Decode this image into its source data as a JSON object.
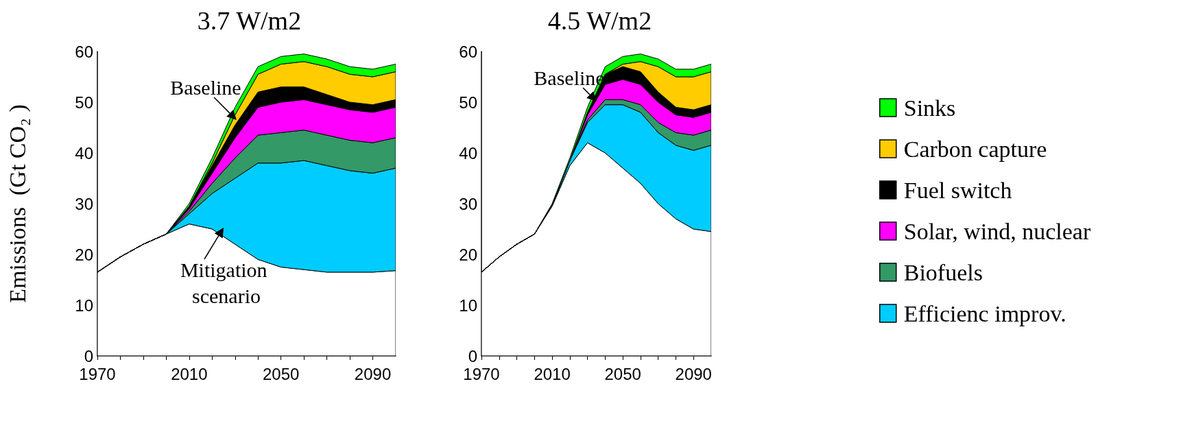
{
  "chart_data": [
    {
      "type": "area",
      "title": "3.7 W/m2",
      "ylabel": "Emissions  (Gt CO₂ )",
      "stacked": true,
      "legend": false,
      "grid": false,
      "x": [
        1970,
        1980,
        1990,
        2000,
        2010,
        2020,
        2030,
        2040,
        2050,
        2060,
        2070,
        2080,
        2090,
        2100
      ],
      "xlim": [
        1970,
        2100
      ],
      "xticks": [
        1970,
        {
          "value": 1980,
          "label": null
        },
        {
          "value": 1990,
          "label": null
        },
        {
          "value": 2000,
          "label": null
        },
        2010,
        {
          "value": 2020,
          "label": null
        },
        {
          "value": 2030,
          "label": null
        },
        {
          "value": 2040,
          "label": null
        },
        2050,
        {
          "value": 2060,
          "label": null
        },
        {
          "value": 2070,
          "label": null
        },
        {
          "value": 2080,
          "label": null
        },
        2090
      ],
      "ylim": [
        0,
        60
      ],
      "yticks": [
        0,
        10,
        20,
        30,
        40,
        50,
        60
      ],
      "annotations": [
        "Baseline",
        "Mitigation scenario"
      ],
      "series": [
        {
          "color": "#ffffff",
          "values": [
            16.5,
            19.5,
            22,
            24,
            26,
            25,
            22,
            19,
            17.5,
            17,
            16.5,
            16.5,
            16.5,
            16.8
          ]
        },
        {
          "color": "#00ccff",
          "values": [
            0,
            0,
            0,
            0,
            2,
            7,
            13,
            19,
            20.5,
            21.5,
            21,
            20,
            19.5,
            20.2
          ]
        },
        {
          "color": "#339966",
          "values": [
            0,
            0,
            0,
            0,
            0.5,
            2,
            4,
            5.5,
            6,
            6,
            6,
            6,
            6,
            6
          ]
        },
        {
          "color": "#ff00ff",
          "values": [
            0,
            0,
            0,
            0,
            0.5,
            2,
            4,
            5.5,
            6,
            6,
            6,
            6,
            6,
            6
          ]
        },
        {
          "color": "#000000",
          "values": [
            0,
            0,
            0,
            0,
            0.5,
            1.5,
            2.5,
            3,
            3,
            2.5,
            2,
            1.5,
            1.5,
            1.5
          ]
        },
        {
          "color": "#ffcc00",
          "values": [
            0,
            0,
            0,
            0,
            0,
            0.5,
            2,
            3.5,
            4.5,
            5,
            5.5,
            5.5,
            5.5,
            5.5
          ]
        },
        {
          "color": "#00ff00",
          "values": [
            0,
            0,
            0,
            0,
            0.5,
            1,
            1.5,
            1.5,
            1.5,
            1.5,
            1.5,
            1.5,
            1.5,
            1.5
          ]
        }
      ]
    },
    {
      "type": "area",
      "title": "4.5 W/m2",
      "stacked": true,
      "legend": "right",
      "grid": false,
      "x": [
        1970,
        1980,
        1990,
        2000,
        2010,
        2020,
        2030,
        2040,
        2050,
        2060,
        2070,
        2080,
        2090,
        2100
      ],
      "xlim": [
        1970,
        2100
      ],
      "xticks": [
        1970,
        {
          "value": 1980,
          "label": null
        },
        {
          "value": 1990,
          "label": null
        },
        {
          "value": 2000,
          "label": null
        },
        2010,
        {
          "value": 2020,
          "label": null
        },
        {
          "value": 2030,
          "label": null
        },
        {
          "value": 2040,
          "label": null
        },
        2050,
        {
          "value": 2060,
          "label": null
        },
        {
          "value": 2070,
          "label": null
        },
        {
          "value": 2080,
          "label": null
        },
        2090
      ],
      "ylim": [
        0,
        60
      ],
      "yticks": [
        0,
        10,
        20,
        30,
        40,
        50,
        60
      ],
      "annotations": [
        "Baseline"
      ],
      "series": [
        {
          "color": "#ffffff",
          "values": [
            16.5,
            19.5,
            22,
            24,
            29.5,
            37.5,
            42,
            40,
            37,
            34,
            30,
            27,
            25,
            24.5
          ]
        },
        {
          "name": "Efficienc improv.",
          "color": "#00ccff",
          "values": [
            0,
            0,
            0,
            0,
            0.2,
            1,
            4,
            9.5,
            12.5,
            14,
            14,
            14.5,
            15.5,
            17
          ]
        },
        {
          "name": "Biofuels",
          "color": "#339966",
          "values": [
            0,
            0,
            0,
            0,
            0,
            0,
            0.5,
            1,
            1,
            1.5,
            2,
            2.5,
            3,
            3
          ]
        },
        {
          "name": "Solar, wind, nuclear",
          "color": "#ff00ff",
          "values": [
            0,
            0,
            0,
            0,
            0,
            0,
            1,
            3,
            4,
            4,
            4,
            3.5,
            3.5,
            3.5
          ]
        },
        {
          "name": "Fuel switch",
          "color": "#000000",
          "values": [
            0,
            0,
            0,
            0,
            0,
            0,
            0.5,
            2,
            2.5,
            2.5,
            2,
            1.5,
            1.5,
            1.5
          ]
        },
        {
          "name": "Carbon capture",
          "color": "#ffcc00",
          "values": [
            0,
            0,
            0,
            0,
            0,
            0,
            0,
            0,
            0.5,
            2,
            5,
            6,
            6.5,
            6.5
          ]
        },
        {
          "name": "Sinks",
          "color": "#00ff00",
          "values": [
            0,
            0,
            0,
            0,
            0.3,
            0.5,
            1,
            1.5,
            1.5,
            1.5,
            1.5,
            1.5,
            1.5,
            1.5
          ]
        }
      ]
    }
  ]
}
